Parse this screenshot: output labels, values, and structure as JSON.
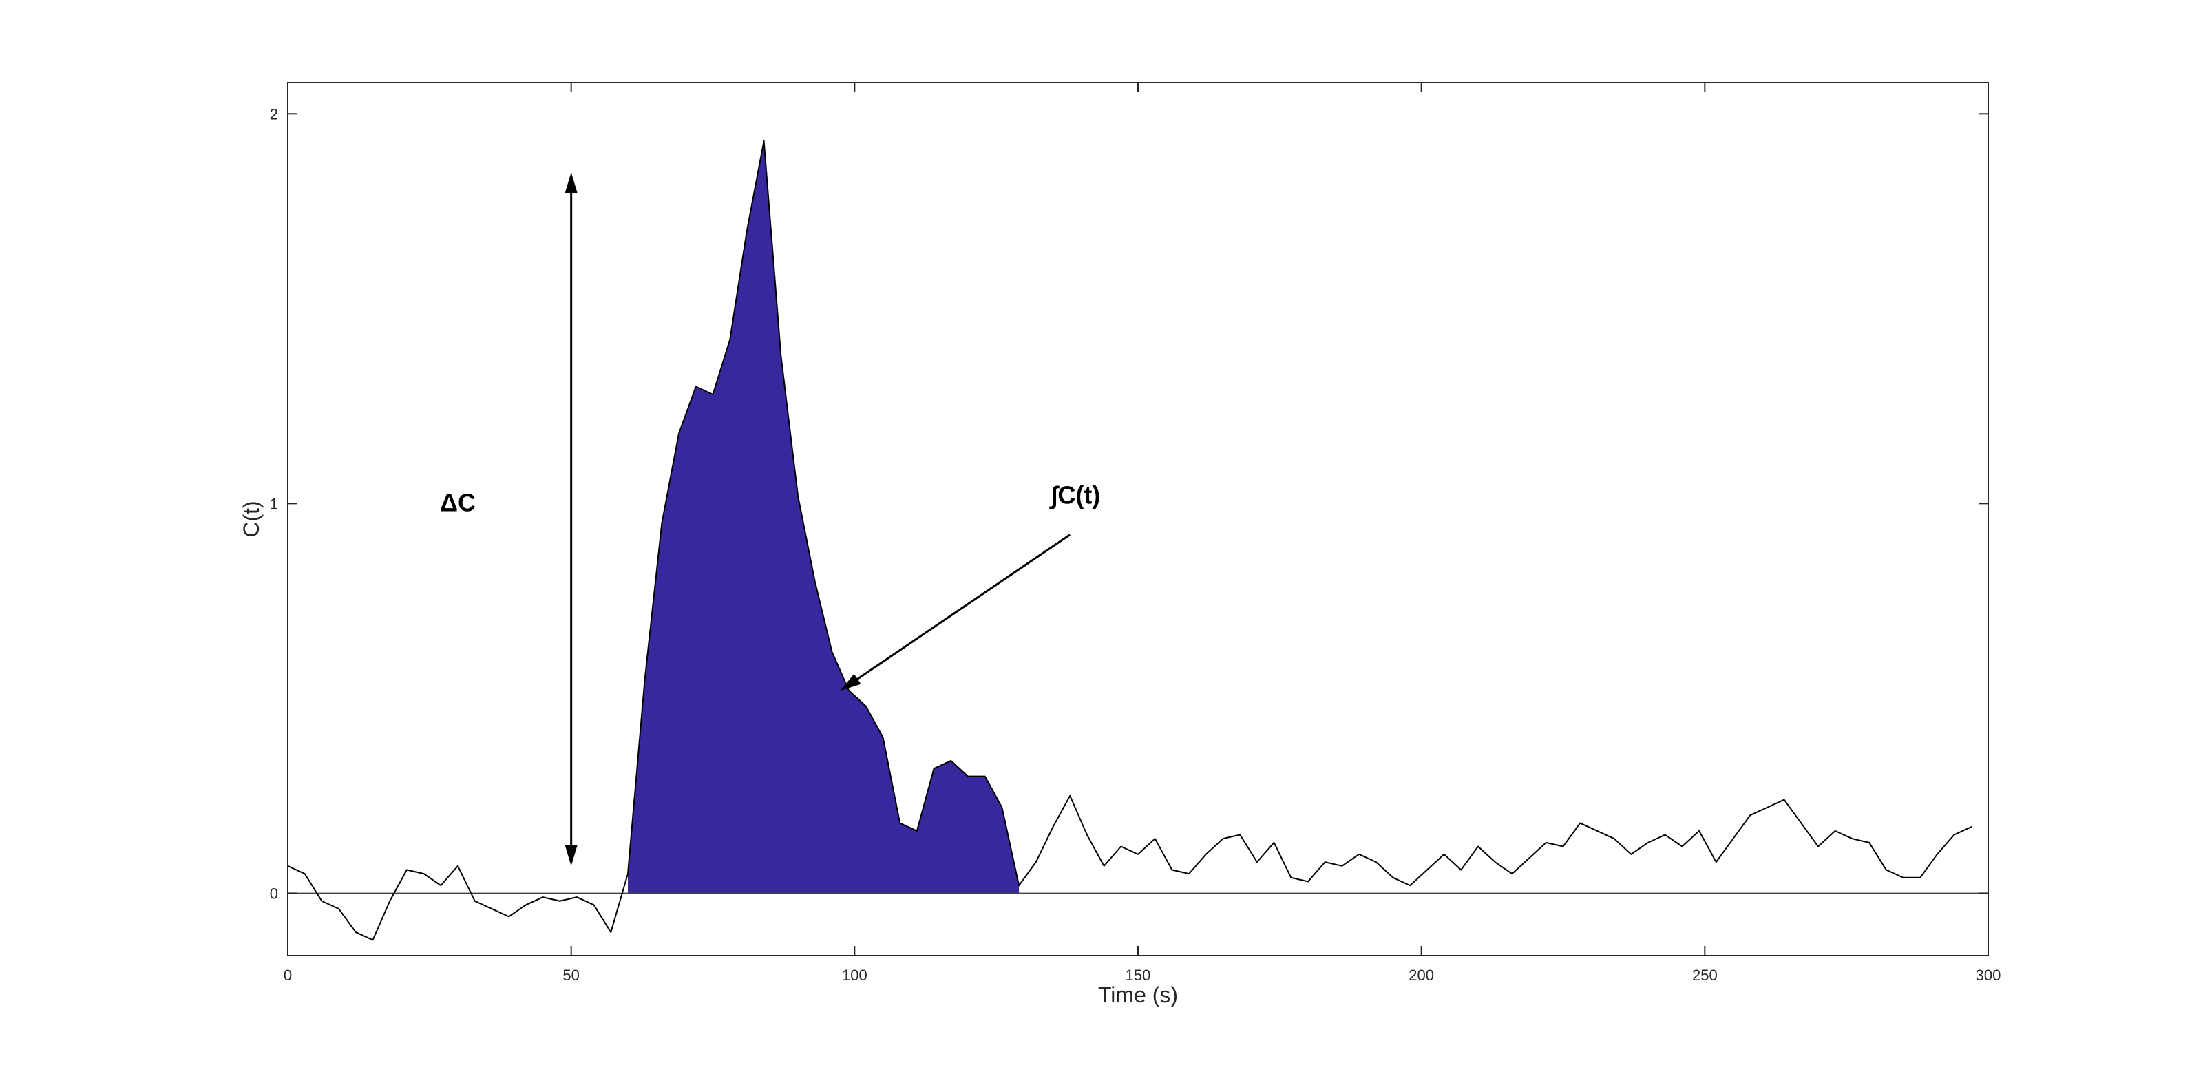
{
  "chart_data": {
    "type": "line",
    "title": "",
    "xlabel": "Time (s)",
    "ylabel": "C(t)",
    "xlim": [
      0,
      300
    ],
    "ylim": [
      -0.16,
      2.08
    ],
    "xticks": [
      0,
      50,
      100,
      150,
      200,
      250,
      300
    ],
    "yticks": [
      0,
      1,
      2
    ],
    "grid": false,
    "legend": "none",
    "line_color": "#000000",
    "fill_color": "#38289E",
    "axis_color": "#262626",
    "zero_line_value": 0,
    "x": [
      0,
      3,
      6,
      9,
      12,
      15,
      18,
      21,
      24,
      27,
      30,
      33,
      36,
      39,
      42,
      45,
      48,
      51,
      54,
      57,
      60,
      63,
      66,
      69,
      72,
      75,
      78,
      81,
      84,
      87,
      90,
      93,
      96,
      99,
      102,
      105,
      108,
      111,
      114,
      117,
      120,
      123,
      126,
      129,
      132,
      135,
      138,
      141,
      144,
      147,
      150,
      153,
      156,
      159,
      162,
      165,
      168,
      171,
      174,
      177,
      180,
      183,
      186,
      189,
      192,
      195,
      198,
      201,
      204,
      207,
      210,
      213,
      216,
      219,
      222,
      225,
      228,
      231,
      234,
      237,
      240,
      243,
      246,
      249,
      252,
      255,
      258,
      261,
      264,
      267,
      270,
      273,
      276,
      279,
      282,
      285,
      288,
      291,
      294,
      297
    ],
    "y": [
      0.07,
      0.05,
      -0.02,
      -0.04,
      -0.1,
      -0.12,
      -0.02,
      0.06,
      0.05,
      0.02,
      0.07,
      -0.02,
      -0.04,
      -0.06,
      -0.03,
      -0.01,
      -0.02,
      -0.01,
      -0.03,
      -0.1,
      0.05,
      0.55,
      0.95,
      1.18,
      1.3,
      1.28,
      1.42,
      1.7,
      1.93,
      1.38,
      1.02,
      0.8,
      0.62,
      0.52,
      0.48,
      0.4,
      0.18,
      0.16,
      0.32,
      0.34,
      0.3,
      0.3,
      0.22,
      0.02,
      0.08,
      0.17,
      0.25,
      0.15,
      0.07,
      0.12,
      0.1,
      0.14,
      0.06,
      0.05,
      0.1,
      0.14,
      0.15,
      0.08,
      0.13,
      0.04,
      0.03,
      0.08,
      0.07,
      0.1,
      0.08,
      0.04,
      0.02,
      0.06,
      0.1,
      0.06,
      0.12,
      0.08,
      0.05,
      0.09,
      0.13,
      0.12,
      0.18,
      0.16,
      0.14,
      0.1,
      0.13,
      0.15,
      0.12,
      0.16,
      0.08,
      0.14,
      0.2,
      0.22,
      0.24,
      0.18,
      0.12,
      0.16,
      0.14,
      0.13,
      0.06,
      0.04,
      0.04,
      0.1,
      0.15,
      0.17
    ],
    "fill_range": [
      60,
      129
    ],
    "annotations": [
      {
        "id": "delta-c",
        "label": "ΔC",
        "label_x": 30,
        "label_y": 0.98,
        "arrow": {
          "type": "double",
          "x1": 50,
          "y1": 0.07,
          "x2": 50,
          "y2": 1.85
        }
      },
      {
        "id": "integral-c",
        "label": "∫C(t)",
        "label_x": 139,
        "label_y": 1.0,
        "arrow": {
          "type": "single",
          "x1": 138,
          "y1": 0.92,
          "x2": 97.5,
          "y2": 0.52
        }
      }
    ]
  }
}
